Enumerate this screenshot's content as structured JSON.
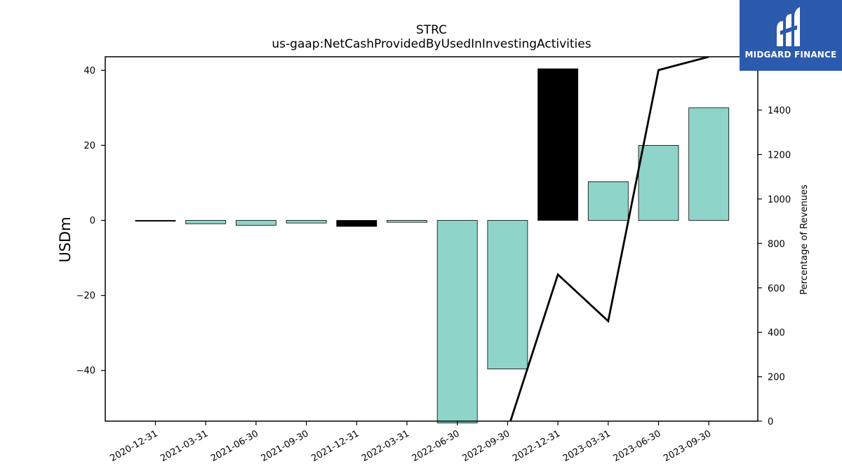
{
  "chart_data": {
    "type": "bar",
    "title": "STRC",
    "subtitle": "us-gaap:NetCashProvidedByUsedInInvestingActivities",
    "ylabel": "USDm",
    "y2label": "Percentage of Revenues",
    "categories": [
      "2020-12-31",
      "2021-03-31",
      "2021-06-30",
      "2021-09-30",
      "2021-12-31",
      "2022-03-31",
      "2022-06-30",
      "2022-09-30",
      "2022-12-31",
      "2023-03-31",
      "2023-06-30",
      "2023-09-30"
    ],
    "series": [
      {
        "values": [
          -0.1,
          -0.9,
          -1.3,
          -0.7,
          -1.6,
          -0.5,
          -54.0,
          -39.6,
          40.4,
          10.3,
          20.0,
          30.0
        ],
        "colors": [
          "#000000",
          "#8fd4c8",
          "#8fd4c8",
          "#8fd4c8",
          "#000000",
          "#8fd4c8",
          "#8fd4c8",
          "#8fd4c8",
          "#000000",
          "#8fd4c8",
          "#8fd4c8",
          "#8fd4c8"
        ]
      },
      {
        "type": "line",
        "axis": "right",
        "values": [
          null,
          null,
          null,
          null,
          null,
          null,
          null,
          -40,
          660,
          450,
          1580,
          1640
        ],
        "color": "#000000"
      }
    ],
    "ylim": [
      -53.5,
      43.6
    ],
    "yticks": [
      40,
      20,
      0,
      -20,
      -40
    ],
    "ytick_labels": [
      "40",
      "20",
      "0",
      "−20",
      "−40"
    ],
    "y2lim": [
      0,
      1640
    ],
    "y2ticks": [
      0,
      200,
      400,
      600,
      800,
      1000,
      1200,
      1400
    ],
    "y2tick_labels": [
      "0",
      "200",
      "400",
      "600",
      "800",
      "1000",
      "1200",
      "1400"
    ],
    "grid": false
  },
  "logo": {
    "text": "MIDGARD FINANCE",
    "color": "#2c5aad"
  }
}
